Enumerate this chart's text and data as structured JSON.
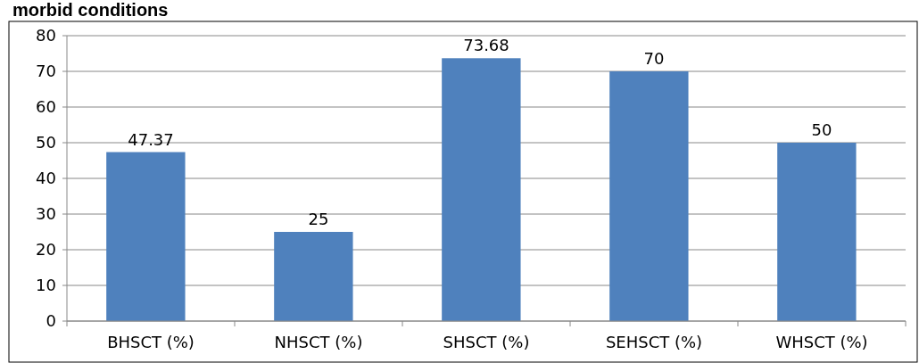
{
  "chart_data": {
    "type": "bar",
    "title": "morbid conditions",
    "categories": [
      "BHSCT (%)",
      "NHSCT (%)",
      "SHSCT (%)",
      "SEHSCT (%)",
      "WHSCT (%)"
    ],
    "values": [
      47.37,
      25,
      73.68,
      70,
      50
    ],
    "color": "#4f81bd",
    "ylim": [
      0,
      80
    ],
    "yticks": [
      0,
      10,
      20,
      30,
      40,
      50,
      60,
      70,
      80
    ],
    "grid": "y",
    "data_labels": true
  }
}
